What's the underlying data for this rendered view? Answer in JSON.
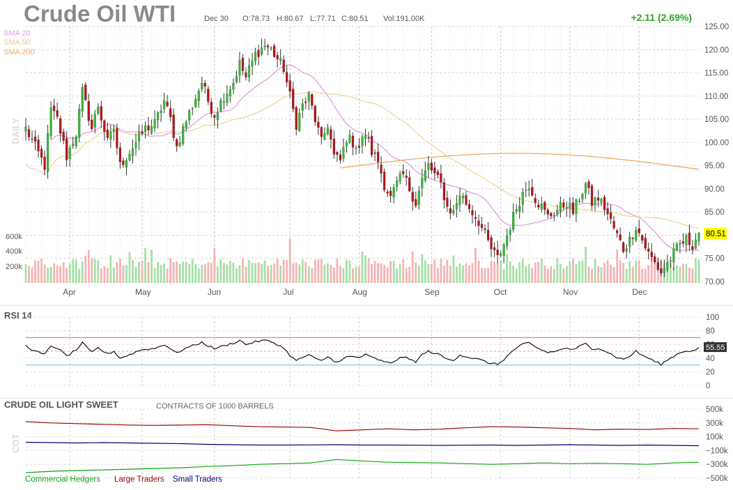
{
  "header": {
    "title": "Crude Oil WTI",
    "date": "Dec 30",
    "open": "O:78.73",
    "high": "H:80.67",
    "low": "L:77.71",
    "close": "C:80.51",
    "volume": "Vol:191.00K",
    "change": "+2.11 (2.69%)"
  },
  "colors": {
    "up": "#3db43d",
    "down": "#b8161b",
    "sma20": "#e79be0",
    "sma50": "#eed7a0",
    "sma200": "#f0a860",
    "rsi_line": "#000000",
    "rsi_upper": "#d27ed6",
    "rsi_lower": "#7fcfe0",
    "commercial": "#0aa60a",
    "large": "#9a0000",
    "small": "#000080"
  },
  "main_panel": {
    "side_label": "DAILY",
    "legend": [
      "SMA 20",
      "SMA 50",
      "SMA 200"
    ],
    "last_price_label": "80.51"
  },
  "rsi_panel": {
    "title": "RSI 14",
    "last_label": "55.55"
  },
  "cot_panel": {
    "title": "CRUDE OIL LIGHT SWEET",
    "subtitle": "CONTRACTS OF 1000 BARRELS",
    "side_label": "COT",
    "legend": [
      "Commercial Hedgers",
      "Large Traders",
      "Small Traders"
    ]
  },
  "chart_data": [
    {
      "type": "candlestick",
      "title": "Crude Oil WTI",
      "x_labels": [
        "Apr",
        "May",
        "Jun",
        "Jul",
        "Aug",
        "Sep",
        "Oct",
        "Nov",
        "Dec"
      ],
      "y_ticks": [
        "125.00",
        "120.00",
        "115.00",
        "110.00",
        "105.00",
        "100.00",
        "95.00",
        "90.00",
        "85.00",
        "80.00",
        "75.00",
        "70.00"
      ],
      "ylim": [
        70,
        125
      ],
      "close_anchor_points": [
        [
          0,
          103
        ],
        [
          3,
          99
        ],
        [
          6,
          95
        ],
        [
          8,
          107
        ],
        [
          10,
          105
        ],
        [
          13,
          97
        ],
        [
          16,
          102
        ],
        [
          18,
          111
        ],
        [
          21,
          103
        ],
        [
          23,
          108
        ],
        [
          26,
          100
        ],
        [
          28,
          103
        ],
        [
          30,
          95
        ],
        [
          33,
          98
        ],
        [
          36,
          101
        ],
        [
          38,
          103
        ],
        [
          41,
          104
        ],
        [
          44,
          109
        ],
        [
          46,
          105
        ],
        [
          48,
          99
        ],
        [
          50,
          103
        ],
        [
          53,
          108
        ],
        [
          56,
          113
        ],
        [
          58,
          109
        ],
        [
          60,
          106
        ],
        [
          63,
          110
        ],
        [
          66,
          113
        ],
        [
          68,
          117
        ],
        [
          70,
          114
        ],
        [
          73,
          119
        ],
        [
          76,
          121
        ],
        [
          78,
          120
        ],
        [
          80,
          118
        ],
        [
          82,
          116
        ],
        [
          84,
          110
        ],
        [
          86,
          104
        ],
        [
          88,
          108
        ],
        [
          90,
          110
        ],
        [
          92,
          105
        ],
        [
          94,
          100
        ],
        [
          96,
          104
        ],
        [
          98,
          97
        ],
        [
          100,
          96
        ],
        [
          102,
          101
        ],
        [
          104,
          100
        ],
        [
          106,
          99
        ],
        [
          108,
          102
        ],
        [
          110,
          98
        ],
        [
          112,
          96
        ],
        [
          114,
          91
        ],
        [
          116,
          88
        ],
        [
          118,
          91
        ],
        [
          120,
          93
        ],
        [
          122,
          90
        ],
        [
          124,
          87
        ],
        [
          126,
          92
        ],
        [
          128,
          95
        ],
        [
          130,
          93
        ],
        [
          132,
          91
        ],
        [
          134,
          86
        ],
        [
          136,
          85
        ],
        [
          138,
          89
        ],
        [
          140,
          87
        ],
        [
          142,
          85
        ],
        [
          144,
          83
        ],
        [
          146,
          80
        ],
        [
          148,
          77
        ],
        [
          150,
          75
        ],
        [
          152,
          78
        ],
        [
          154,
          82
        ],
        [
          156,
          86
        ],
        [
          158,
          89
        ],
        [
          160,
          91
        ],
        [
          162,
          88
        ],
        [
          164,
          86
        ],
        [
          166,
          84
        ],
        [
          168,
          85
        ],
        [
          170,
          86
        ],
        [
          172,
          87
        ],
        [
          174,
          85
        ],
        [
          176,
          88
        ],
        [
          178,
          91
        ],
        [
          180,
          87
        ],
        [
          182,
          88
        ],
        [
          184,
          86
        ],
        [
          186,
          83
        ],
        [
          188,
          80
        ],
        [
          190,
          77
        ],
        [
          192,
          79
        ],
        [
          194,
          82
        ],
        [
          196,
          79
        ],
        [
          198,
          76
        ],
        [
          200,
          74
        ],
        [
          202,
          72
        ],
        [
          204,
          74
        ],
        [
          206,
          76
        ],
        [
          208,
          78
        ],
        [
          210,
          79
        ],
        [
          212,
          78
        ],
        [
          214,
          80.51
        ]
      ],
      "volume_axis": [
        "600k",
        "400k",
        "200k"
      ]
    },
    {
      "type": "line",
      "title": "RSI 14",
      "y_ticks": [
        "100",
        "80",
        "60",
        "40",
        "20",
        "0"
      ],
      "ylim": [
        0,
        100
      ],
      "reference_lines": [
        70,
        30
      ],
      "anchor_points": [
        [
          0,
          58
        ],
        [
          3,
          50
        ],
        [
          6,
          45
        ],
        [
          8,
          58
        ],
        [
          10,
          55
        ],
        [
          13,
          43
        ],
        [
          16,
          52
        ],
        [
          18,
          62
        ],
        [
          21,
          48
        ],
        [
          23,
          55
        ],
        [
          26,
          46
        ],
        [
          28,
          50
        ],
        [
          30,
          40
        ],
        [
          33,
          45
        ],
        [
          36,
          51
        ],
        [
          38,
          53
        ],
        [
          41,
          54
        ],
        [
          44,
          60
        ],
        [
          46,
          54
        ],
        [
          48,
          47
        ],
        [
          50,
          53
        ],
        [
          53,
          58
        ],
        [
          56,
          63
        ],
        [
          58,
          58
        ],
        [
          60,
          54
        ],
        [
          63,
          58
        ],
        [
          66,
          62
        ],
        [
          68,
          66
        ],
        [
          70,
          60
        ],
        [
          73,
          64
        ],
        [
          76,
          66
        ],
        [
          78,
          64
        ],
        [
          80,
          60
        ],
        [
          82,
          55
        ],
        [
          84,
          44
        ],
        [
          86,
          36
        ],
        [
          88,
          41
        ],
        [
          90,
          45
        ],
        [
          92,
          39
        ],
        [
          94,
          36
        ],
        [
          96,
          42
        ],
        [
          98,
          36
        ],
        [
          100,
          35
        ],
        [
          102,
          42
        ],
        [
          104,
          42
        ],
        [
          106,
          41
        ],
        [
          108,
          45
        ],
        [
          110,
          41
        ],
        [
          112,
          38
        ],
        [
          114,
          34
        ],
        [
          116,
          33
        ],
        [
          118,
          38
        ],
        [
          120,
          42
        ],
        [
          122,
          38
        ],
        [
          124,
          35
        ],
        [
          126,
          45
        ],
        [
          128,
          50
        ],
        [
          130,
          47
        ],
        [
          132,
          44
        ],
        [
          134,
          38
        ],
        [
          136,
          37
        ],
        [
          138,
          45
        ],
        [
          140,
          42
        ],
        [
          142,
          40
        ],
        [
          144,
          38
        ],
        [
          146,
          35
        ],
        [
          148,
          32
        ],
        [
          150,
          31
        ],
        [
          152,
          38
        ],
        [
          154,
          47
        ],
        [
          156,
          55
        ],
        [
          158,
          60
        ],
        [
          160,
          62
        ],
        [
          162,
          56
        ],
        [
          164,
          52
        ],
        [
          166,
          48
        ],
        [
          168,
          50
        ],
        [
          170,
          52
        ],
        [
          172,
          55
        ],
        [
          174,
          52
        ],
        [
          176,
          57
        ],
        [
          178,
          61
        ],
        [
          180,
          53
        ],
        [
          182,
          55
        ],
        [
          184,
          51
        ],
        [
          186,
          46
        ],
        [
          188,
          41
        ],
        [
          190,
          38
        ],
        [
          192,
          43
        ],
        [
          194,
          50
        ],
        [
          196,
          44
        ],
        [
          198,
          40
        ],
        [
          200,
          35
        ],
        [
          202,
          31
        ],
        [
          204,
          37
        ],
        [
          206,
          43
        ],
        [
          208,
          48
        ],
        [
          210,
          51
        ],
        [
          212,
          50
        ],
        [
          214,
          55.55
        ]
      ]
    },
    {
      "type": "line",
      "title": "CRUDE OIL LIGHT SWEET",
      "subtitle": "CONTRACTS OF 1000 BARRELS",
      "y_ticks": [
        "500k",
        "300k",
        "100k",
        "−100k",
        "−300k",
        "−500k"
      ],
      "ylim": [
        -500000,
        500000
      ],
      "series": [
        {
          "name": "Commercial Hedgers",
          "values": [
            -420000,
            -400000,
            -390000,
            -380000,
            -370000,
            -360000,
            -350000,
            -330000,
            -320000,
            -300000,
            -290000,
            -280000,
            -230000,
            -250000,
            -270000,
            -275000,
            -280000,
            -290000,
            -300000,
            -290000,
            -280000,
            -290000,
            -285000,
            -290000,
            -300000,
            -280000,
            -270000
          ]
        },
        {
          "name": "Large Traders",
          "values": [
            320000,
            300000,
            290000,
            280000,
            270000,
            265000,
            270000,
            275000,
            260000,
            245000,
            240000,
            235000,
            185000,
            200000,
            215000,
            200000,
            210000,
            230000,
            245000,
            240000,
            230000,
            220000,
            200000,
            210000,
            205000,
            220000,
            215000
          ]
        },
        {
          "name": "Small Traders",
          "values": [
            20000,
            15000,
            10000,
            15000,
            10000,
            5000,
            0,
            -10000,
            -15000,
            -20000,
            -20000,
            -18000,
            -15000,
            -20000,
            -20000,
            -22000,
            -25000,
            -22000,
            -20000,
            -25000,
            -20000,
            -15000,
            -20000,
            -25000,
            -20000,
            -25000,
            -30000
          ]
        }
      ]
    }
  ]
}
